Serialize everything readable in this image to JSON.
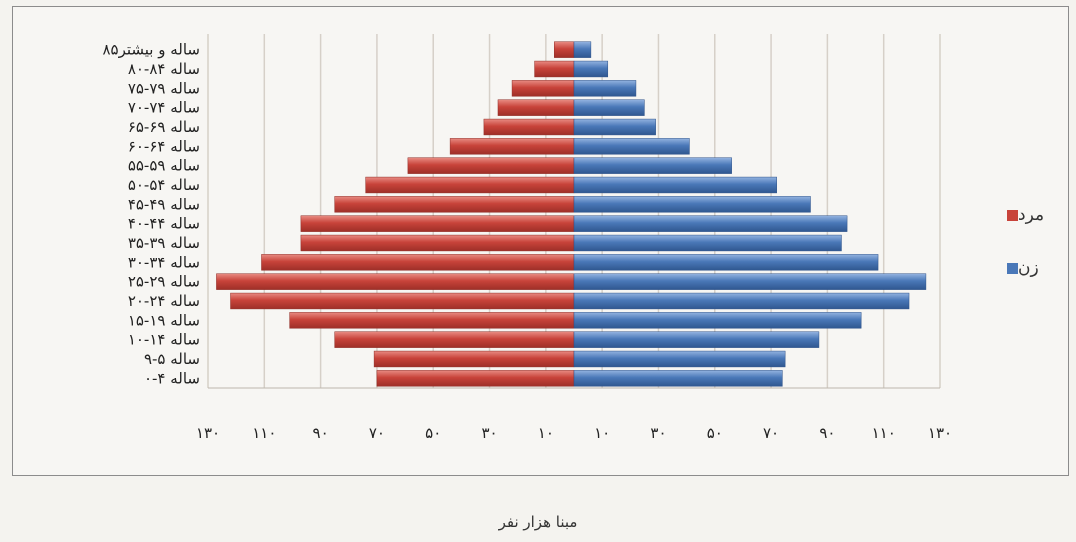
{
  "chart_data": {
    "type": "bar",
    "orientation": "horizontal",
    "subtype": "population-pyramid",
    "title": "",
    "xlabel": "مبنا هزار نفر",
    "ylabel": "",
    "categories": [
      "۰-۴ ساله",
      "۹-۵ ساله",
      "۱۰-۱۴ ساله",
      "۱۵-۱۹ ساله",
      "۲۰-۲۴ ساله",
      "۲۵-۲۹ ساله",
      "۳۰-۳۴ ساله",
      "۳۵-۳۹ ساله",
      "۴۰-۴۴ ساله",
      "۴۵-۴۹ ساله",
      "۵۰-۵۴ ساله",
      "۵۵-۵۹ ساله",
      "۶۰-۶۴ ساله",
      "۶۵-۶۹ ساله",
      "۷۰-۷۴ ساله",
      "۷۵-۷۹ ساله",
      "۸۰-۸۴ ساله",
      "۸۵ساله و بیشتر"
    ],
    "series": [
      {
        "name": "مرد",
        "color": "#c8433a",
        "side": "left",
        "values": [
          70,
          71,
          85,
          101,
          122,
          127,
          111,
          97,
          97,
          85,
          74,
          59,
          44,
          32,
          27,
          22,
          14,
          7
        ]
      },
      {
        "name": "زن",
        "color": "#4a78b8",
        "side": "right",
        "values": [
          74,
          75,
          87,
          102,
          119,
          125,
          108,
          95,
          97,
          84,
          72,
          56,
          41,
          29,
          25,
          22,
          12,
          6
        ]
      }
    ],
    "xtick_labels": [
      "۱۳۰",
      "۱۱۰",
      "۹۰",
      "۷۰",
      "۵۰",
      "۳۰",
      "۱۰",
      "۱۰",
      "۳۰",
      "۵۰",
      "۷۰",
      "۹۰",
      "۱۱۰",
      "۱۳۰"
    ],
    "xtick_values": [
      -130,
      -110,
      -90,
      -70,
      -50,
      -30,
      -10,
      10,
      30,
      50,
      70,
      90,
      110,
      130
    ],
    "xlim": [
      -130,
      130
    ],
    "grid": "vertical",
    "legend_position": "right"
  }
}
